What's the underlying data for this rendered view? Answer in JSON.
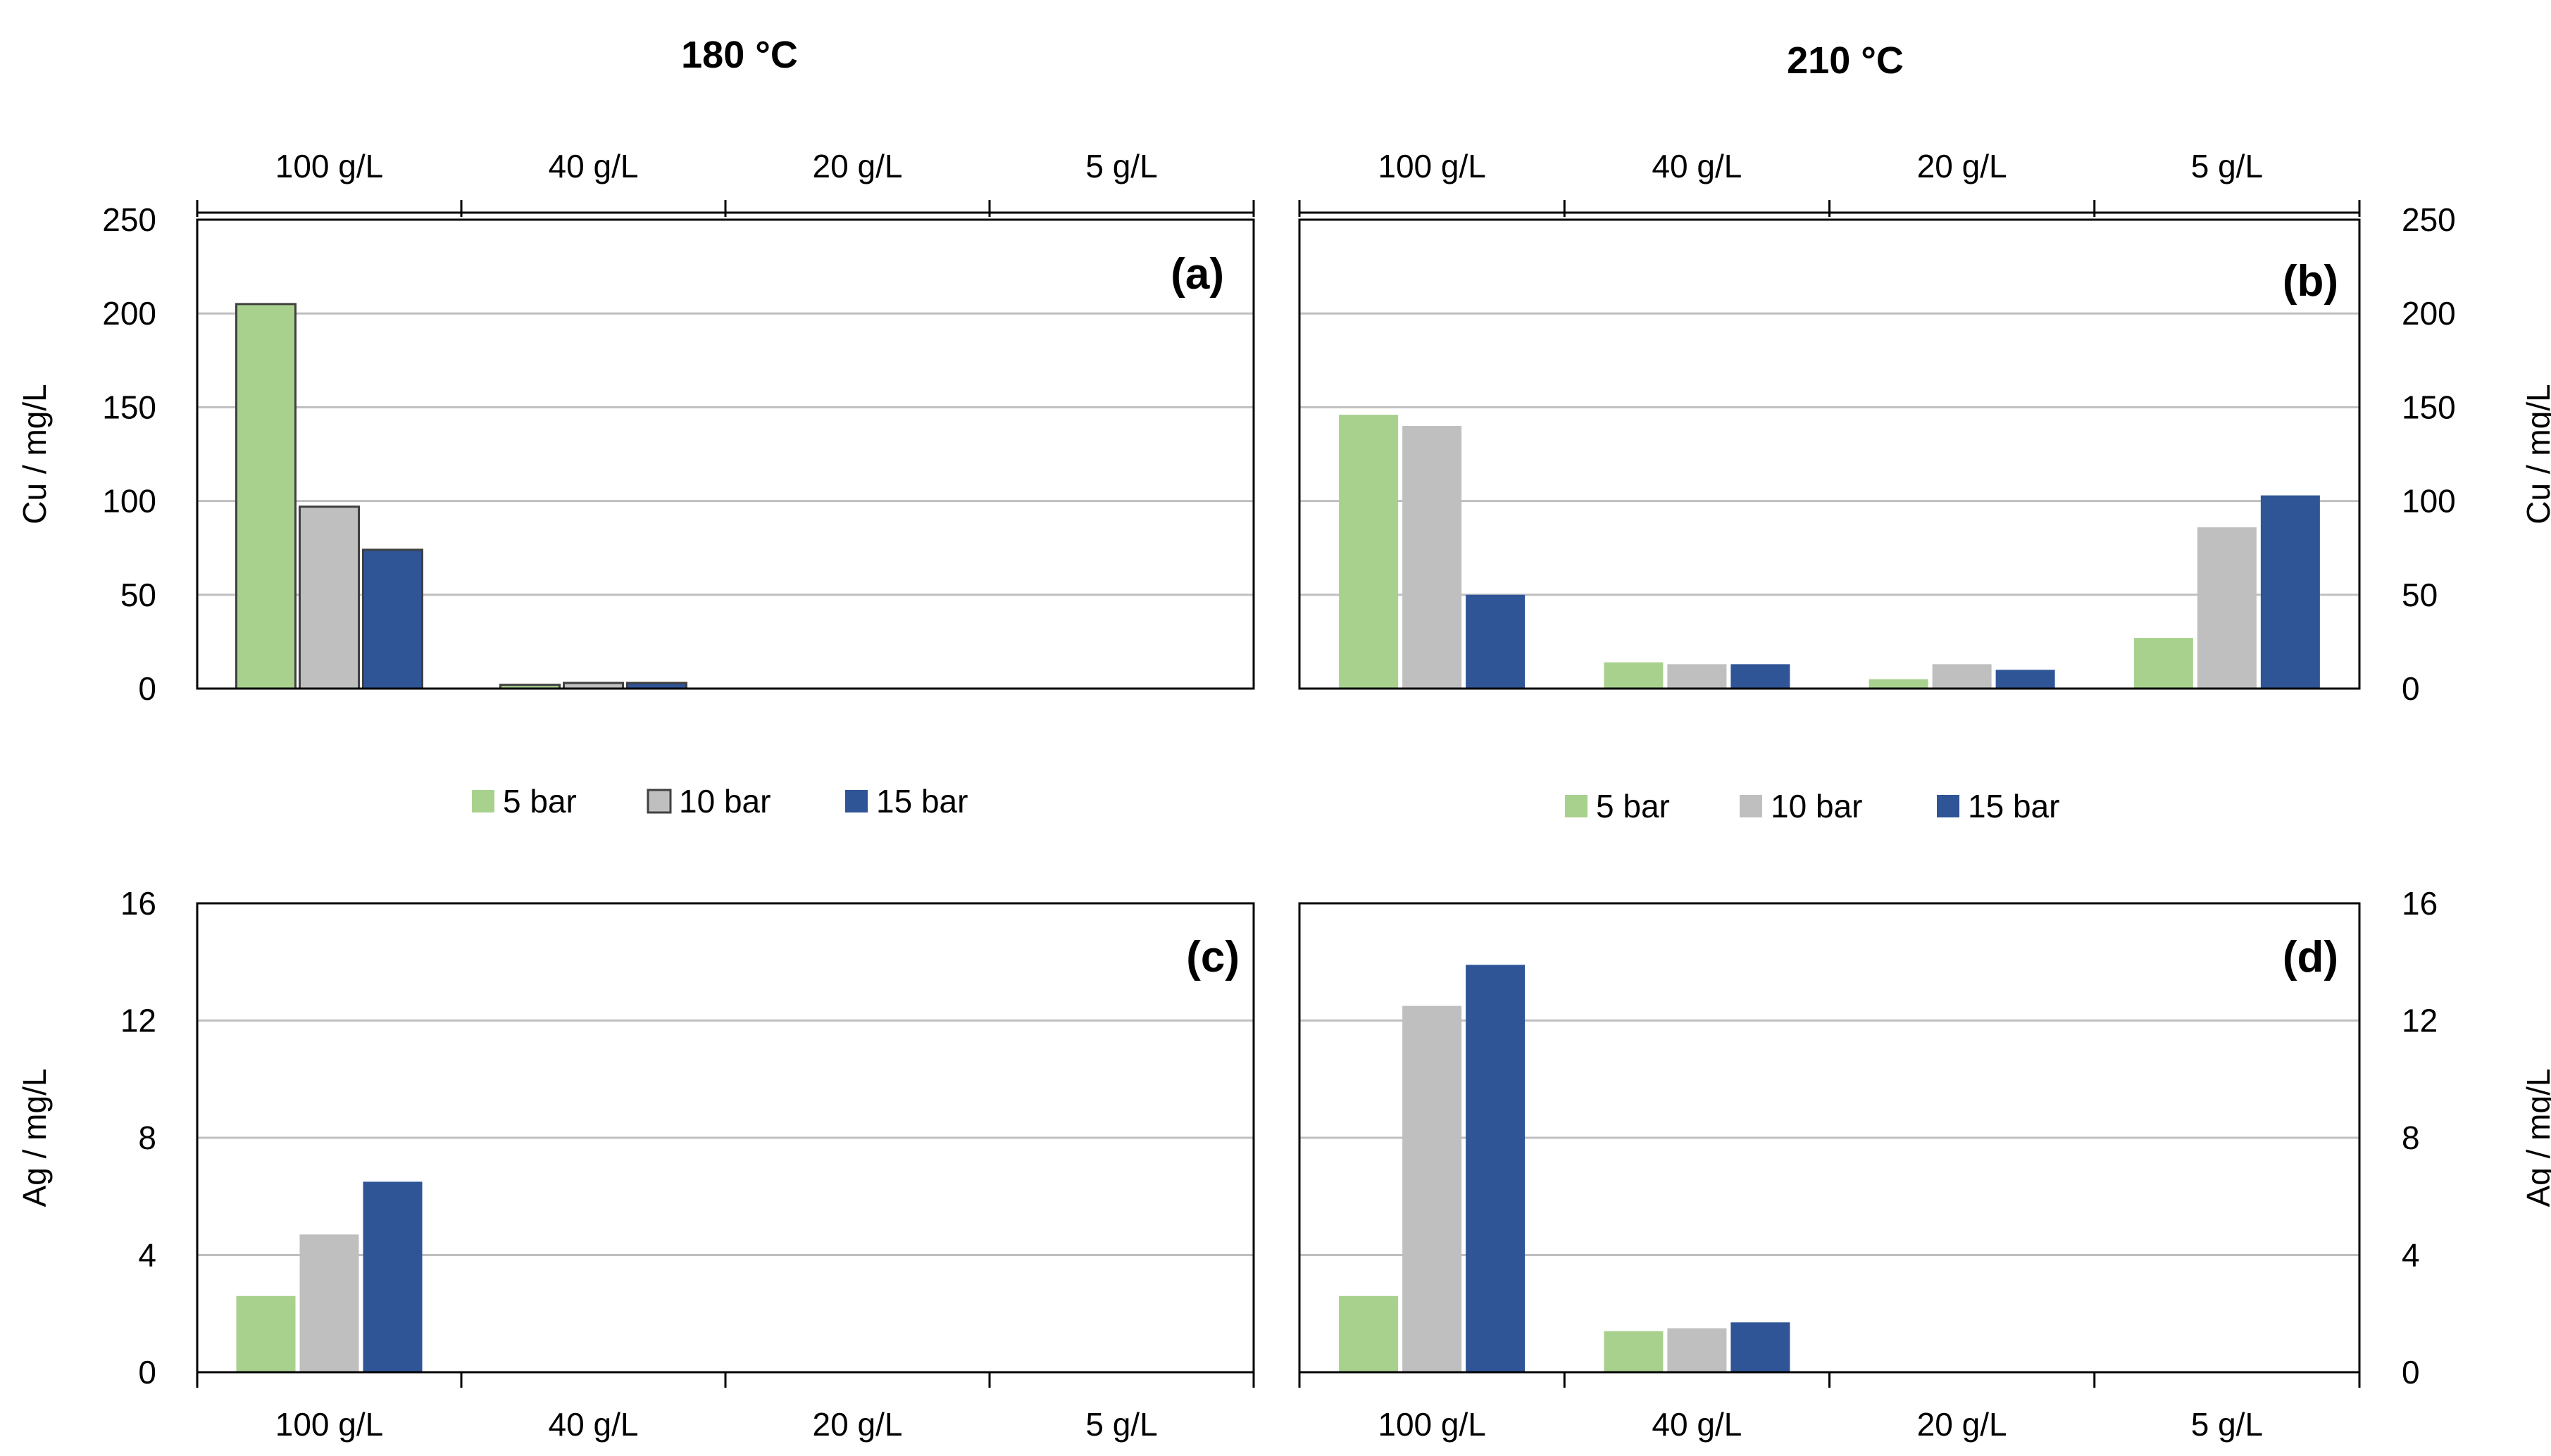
{
  "figure": {
    "temperature_titles": [
      "180 °C",
      "210 °C"
    ]
  },
  "colors": {
    "5 bar": "#A9D18E",
    "10 bar": "#BFBFBF",
    "15 bar": "#2F5597",
    "gridline": "#BFBFBF",
    "axis": "#000000"
  },
  "chart_data": [
    {
      "id": "a",
      "panel_label": "(a)",
      "type": "bar",
      "temperature": "180 °C",
      "categories": [
        "100 g/L",
        "40 g/L",
        "20 g/L",
        "5 g/L"
      ],
      "series": [
        {
          "name": "5 bar",
          "values": [
            205,
            2,
            0,
            0
          ]
        },
        {
          "name": "10 bar",
          "values": [
            97,
            3,
            0,
            0
          ]
        },
        {
          "name": "15 bar",
          "values": [
            74,
            3,
            0,
            0
          ]
        }
      ],
      "ylabel": "Cu / mg/L",
      "ylim": [
        0,
        250
      ],
      "yticks": [
        0,
        50,
        100,
        150,
        200,
        250
      ],
      "grid": true,
      "bar_outline": true
    },
    {
      "id": "b",
      "panel_label": "(b)",
      "type": "bar",
      "temperature": "210 °C",
      "categories": [
        "100 g/L",
        "40 g/L",
        "20 g/L",
        "5 g/L"
      ],
      "series": [
        {
          "name": "5 bar",
          "values": [
            146,
            14,
            5,
            27
          ]
        },
        {
          "name": "10 bar",
          "values": [
            140,
            13,
            13,
            86
          ]
        },
        {
          "name": "15 bar",
          "values": [
            50,
            13,
            10,
            103
          ]
        }
      ],
      "ylabel": "Cu / mg/L",
      "ylim": [
        0,
        250
      ],
      "yticks": [
        0,
        50,
        100,
        150,
        200,
        250
      ],
      "grid": true,
      "bar_outline": false
    },
    {
      "id": "c",
      "panel_label": "(c)",
      "type": "bar",
      "temperature": "180 °C",
      "categories": [
        "100 g/L",
        "40 g/L",
        "20 g/L",
        "5 g/L"
      ],
      "series": [
        {
          "name": "5 bar",
          "values": [
            2.6,
            0,
            0,
            0
          ]
        },
        {
          "name": "10 bar",
          "values": [
            4.7,
            0,
            0,
            0
          ]
        },
        {
          "name": "15 bar",
          "values": [
            6.5,
            0,
            0,
            0
          ]
        }
      ],
      "ylabel": "Ag / mg/L",
      "ylim": [
        0,
        16
      ],
      "yticks": [
        0,
        4,
        8,
        12,
        16
      ],
      "grid": true,
      "bar_outline": false
    },
    {
      "id": "d",
      "panel_label": "(d)",
      "type": "bar",
      "temperature": "210 °C",
      "categories": [
        "100 g/L",
        "40 g/L",
        "20 g/L",
        "5 g/L"
      ],
      "series": [
        {
          "name": "5 bar",
          "values": [
            2.6,
            1.4,
            0,
            0
          ]
        },
        {
          "name": "10 bar",
          "values": [
            12.5,
            1.5,
            0,
            0
          ]
        },
        {
          "name": "15 bar",
          "values": [
            13.9,
            1.7,
            0,
            0
          ]
        }
      ],
      "ylabel": "Ag / mg/L",
      "ylim": [
        0,
        16
      ],
      "yticks": [
        0,
        4,
        8,
        12,
        16
      ],
      "grid": true,
      "bar_outline": false
    }
  ],
  "legends": [
    {
      "id": "left",
      "entries": [
        "5 bar",
        "10 bar",
        "15 bar"
      ],
      "outlined": true
    },
    {
      "id": "right",
      "entries": [
        "5 bar",
        "10 bar",
        "15 bar"
      ],
      "outlined": false
    }
  ]
}
